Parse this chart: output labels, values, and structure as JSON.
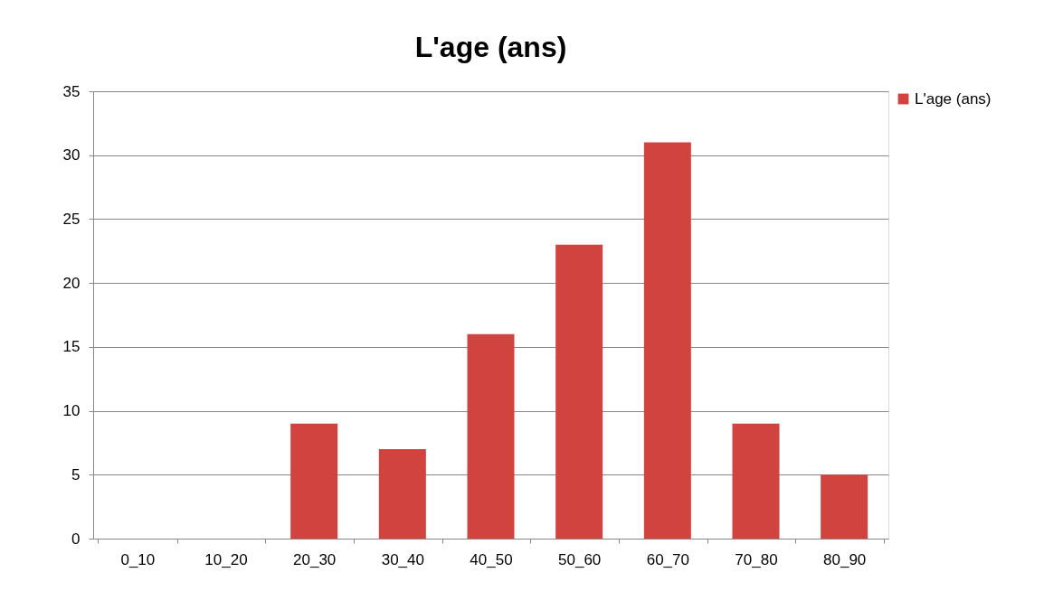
{
  "chart_data": {
    "type": "bar",
    "title": "L'age (ans)",
    "categories": [
      "0_10",
      "10_20",
      "20_30",
      "30_40",
      "40_50",
      "50_60",
      "60_70",
      "70_80",
      "80_90"
    ],
    "series": [
      {
        "name": "L'age (ans)",
        "color": "#d0433f",
        "values": [
          0,
          0,
          9,
          7,
          16,
          23,
          31,
          9,
          5
        ]
      }
    ],
    "ylim": [
      0,
      35
    ],
    "yticks": [
      0,
      5,
      10,
      15,
      20,
      25,
      30,
      35
    ],
    "grid": "y",
    "legend": "right"
  }
}
